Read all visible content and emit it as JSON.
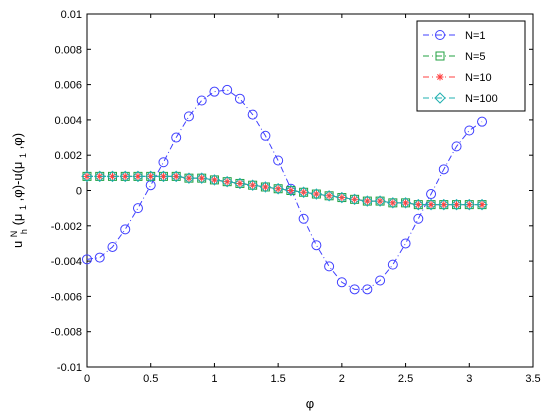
{
  "chart_data": {
    "type": "line",
    "xlabel": "φ",
    "ylabel": {
      "base": "u",
      "sup": "N",
      "sub": "h",
      "mid": "(μ",
      "sub2": "1",
      "mid2": ",φ)-u(μ",
      "sub3": "1",
      "tail": ",φ)"
    },
    "xlim": [
      0,
      3.5
    ],
    "ylim": [
      -0.01,
      0.01
    ],
    "x_ticks": [
      "0",
      "0.5",
      "1",
      "1.5",
      "2",
      "2.5",
      "3",
      "3.5"
    ],
    "y_ticks": [
      "-0.01",
      "-0.008",
      "-0.006",
      "-0.004",
      "-0.002",
      "0",
      "0.002",
      "0.004",
      "0.006",
      "0.008",
      "0.01"
    ],
    "legend_position": "top-right",
    "series": [
      {
        "name": "N=1",
        "color": "#4040ff",
        "marker": "circle",
        "x": [
          0,
          0.1,
          0.2,
          0.3,
          0.4,
          0.5,
          0.6,
          0.7,
          0.8,
          0.9,
          1.0,
          1.1,
          1.2,
          1.3,
          1.4,
          1.5,
          1.6,
          1.7,
          1.8,
          1.9,
          2.0,
          2.1,
          2.2,
          2.3,
          2.4,
          2.5,
          2.6,
          2.7,
          2.8,
          2.9,
          3.0,
          3.1
        ],
        "y": [
          -0.0039,
          -0.0038,
          -0.0032,
          -0.0022,
          -0.001,
          0.0003,
          0.0016,
          0.003,
          0.0042,
          0.0051,
          0.0056,
          0.0057,
          0.0052,
          0.0043,
          0.0031,
          0.0017,
          0.0001,
          -0.0016,
          -0.0031,
          -0.0043,
          -0.0052,
          -0.0056,
          -0.0056,
          -0.0051,
          -0.0042,
          -0.003,
          -0.0016,
          -0.0002,
          0.0012,
          0.0025,
          0.0034,
          0.0039
        ]
      },
      {
        "name": "N=5",
        "color": "#20a040",
        "marker": "square",
        "x": [
          0,
          0.1,
          0.2,
          0.3,
          0.4,
          0.5,
          0.6,
          0.7,
          0.8,
          0.9,
          1.0,
          1.1,
          1.2,
          1.3,
          1.4,
          1.5,
          1.6,
          1.7,
          1.8,
          1.9,
          2.0,
          2.1,
          2.2,
          2.3,
          2.4,
          2.5,
          2.6,
          2.7,
          2.8,
          2.9,
          3.0,
          3.1
        ],
        "y": [
          0.0008,
          0.0008,
          0.0008,
          0.0008,
          0.0008,
          0.0008,
          0.0008,
          0.0008,
          0.0007,
          0.0007,
          0.0006,
          0.0005,
          0.0004,
          0.0003,
          0.0002,
          0.0001,
          0.0,
          -0.0001,
          -0.0002,
          -0.0003,
          -0.0004,
          -0.0005,
          -0.0006,
          -0.0006,
          -0.0007,
          -0.0007,
          -0.0008,
          -0.0008,
          -0.0008,
          -0.0008,
          -0.0008,
          -0.0008
        ]
      },
      {
        "name": "N=10",
        "color": "#ff4040",
        "marker": "asterisk",
        "x": [
          0,
          0.1,
          0.2,
          0.3,
          0.4,
          0.5,
          0.6,
          0.7,
          0.8,
          0.9,
          1.0,
          1.1,
          1.2,
          1.3,
          1.4,
          1.5,
          1.6,
          1.7,
          1.8,
          1.9,
          2.0,
          2.1,
          2.2,
          2.3,
          2.4,
          2.5,
          2.6,
          2.7,
          2.8,
          2.9,
          3.0,
          3.1
        ],
        "y": [
          0.0008,
          0.0008,
          0.0008,
          0.0008,
          0.0008,
          0.0008,
          0.0008,
          0.0008,
          0.0007,
          0.0007,
          0.0006,
          0.0005,
          0.0004,
          0.0003,
          0.0002,
          0.0001,
          0.0,
          -0.0001,
          -0.0002,
          -0.0003,
          -0.0004,
          -0.0005,
          -0.0006,
          -0.0006,
          -0.0007,
          -0.0007,
          -0.0008,
          -0.0008,
          -0.0008,
          -0.0008,
          -0.0008,
          -0.0008
        ]
      },
      {
        "name": "N=100",
        "color": "#20b0b0",
        "marker": "diamond",
        "x": [
          0,
          0.1,
          0.2,
          0.3,
          0.4,
          0.5,
          0.6,
          0.7,
          0.8,
          0.9,
          1.0,
          1.1,
          1.2,
          1.3,
          1.4,
          1.5,
          1.6,
          1.7,
          1.8,
          1.9,
          2.0,
          2.1,
          2.2,
          2.3,
          2.4,
          2.5,
          2.6,
          2.7,
          2.8,
          2.9,
          3.0,
          3.1
        ],
        "y": [
          0.0008,
          0.0008,
          0.0008,
          0.0008,
          0.0008,
          0.0008,
          0.0008,
          0.0008,
          0.0007,
          0.0007,
          0.0006,
          0.0005,
          0.0004,
          0.0003,
          0.0002,
          0.0001,
          0.0,
          -0.0001,
          -0.0002,
          -0.0003,
          -0.0004,
          -0.0005,
          -0.0006,
          -0.0006,
          -0.0007,
          -0.0007,
          -0.0008,
          -0.0008,
          -0.0008,
          -0.0008,
          -0.0008,
          -0.0008
        ]
      }
    ]
  }
}
